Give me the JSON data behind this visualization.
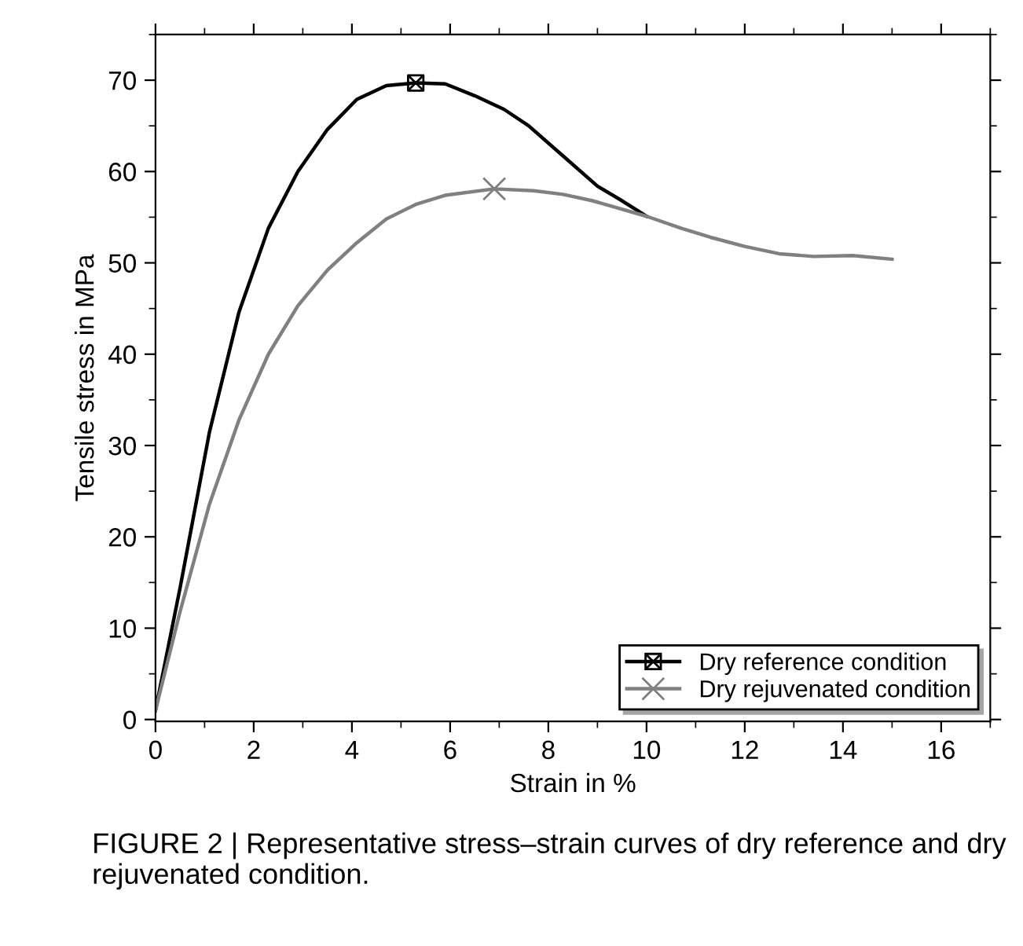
{
  "chart_data": {
    "type": "line",
    "xlabel": "Strain in %",
    "ylabel": "Tensile stress in MPa",
    "xlim": [
      0,
      17
    ],
    "xticks": [
      0,
      2,
      4,
      6,
      8,
      10,
      12,
      14,
      16
    ],
    "ylim": [
      -0.2,
      75
    ],
    "yticks": [
      0,
      10,
      20,
      30,
      40,
      50,
      60,
      70
    ],
    "grid": false,
    "legend": "bottom right",
    "line_style": "solid",
    "series": [
      {
        "name": "Dry reference condition",
        "color": "#000000",
        "x": [
          0,
          0.5,
          1.1,
          1.7,
          2.3,
          2.9,
          3.5,
          4.1,
          4.7,
          5.3,
          5.9,
          6.5,
          7.1,
          7.6,
          8.3,
          9.0,
          9.5,
          10.0
        ],
        "values": [
          1,
          14.4,
          31.5,
          44.6,
          53.8,
          60,
          64.6,
          67.9,
          69.4,
          69.7,
          69.6,
          68.3,
          66.8,
          65,
          61.7,
          58.4,
          56.8,
          55.1
        ]
      },
      {
        "name": "Dry rejuvenated condition",
        "color": "#808080",
        "x": [
          0,
          0.5,
          1.1,
          1.7,
          2.3,
          2.9,
          3.5,
          4.1,
          4.7,
          5.3,
          5.9,
          6.9,
          7.7,
          8.3,
          8.9,
          10.0,
          10.7,
          11.3,
          12,
          12.7,
          13.4,
          14.2,
          15.0
        ],
        "values": [
          1,
          11.8,
          23.6,
          32.8,
          40,
          45.3,
          49.2,
          52.2,
          54.8,
          56.4,
          57.4,
          58.1,
          57.9,
          57.5,
          56.8,
          55.1,
          53.8,
          52.8,
          51.8,
          51,
          50.7,
          50.8,
          50.4
        ]
      },
      {
        "type": "scatter",
        "color": "#000000",
        "marker": "square",
        "x": [
          5.3
        ],
        "values": [
          69.7
        ]
      },
      {
        "type": "scatter",
        "color": "#808080",
        "marker": "cross",
        "x": [
          6.9
        ],
        "values": [
          58.1
        ]
      }
    ],
    "annotations": [
      "FIGURE 2 | Representative stress–strain curves of dry reference and dry rejuvenated condition."
    ]
  }
}
